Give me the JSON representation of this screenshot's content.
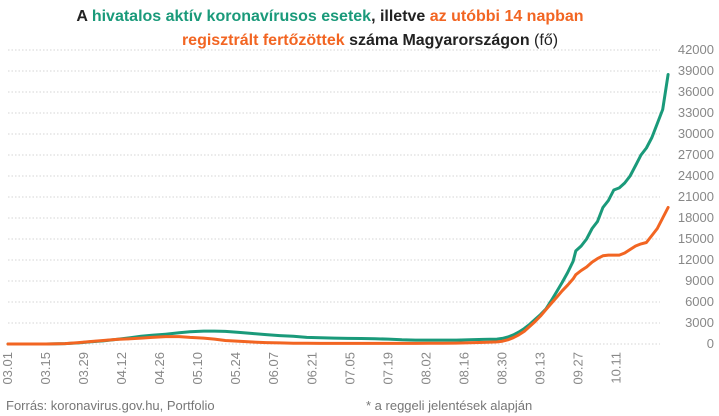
{
  "chart_data": {
    "type": "line",
    "title_line1": [
      {
        "text": "A ",
        "color": "#222222",
        "weight": "bold"
      },
      {
        "text": "hivatalos aktív koronavírusos esetek",
        "color": "#1a9a7a",
        "weight": "bold"
      },
      {
        "text": ", illetve ",
        "color": "#222222",
        "weight": "bold"
      },
      {
        "text": "az utóbbi 14 napban",
        "color": "#f26522",
        "weight": "bold"
      }
    ],
    "title_line2": [
      {
        "text": "regisztrált fertőzöttek",
        "color": "#f26522",
        "weight": "bold"
      },
      {
        "text": " száma Magyarországon ",
        "color": "#222222",
        "weight": "bold"
      },
      {
        "text": "(fő)",
        "color": "#222222",
        "weight": "normal"
      }
    ],
    "x_tick_labels": [
      "03.01",
      "03.15",
      "03.29",
      "04.12",
      "04.26",
      "05.10",
      "05.24",
      "06.07",
      "06.21",
      "07.05",
      "07.19",
      "08.02",
      "08.16",
      "08.30",
      "09.13",
      "09.27",
      "10.11"
    ],
    "y_ticks": [
      0,
      3000,
      6000,
      9000,
      12000,
      15000,
      18000,
      21000,
      24000,
      27000,
      30000,
      33000,
      36000,
      39000,
      42000
    ],
    "ylim": [
      0,
      42000
    ],
    "x_day_range": [
      0,
      240
    ],
    "grid": true,
    "series": [
      {
        "color": "#1a9a7a",
        "points": [
          [
            0,
            0
          ],
          [
            14,
            0
          ],
          [
            21,
            50
          ],
          [
            26,
            150
          ],
          [
            30,
            300
          ],
          [
            35,
            450
          ],
          [
            40,
            650
          ],
          [
            45,
            900
          ],
          [
            49,
            1100
          ],
          [
            53,
            1250
          ],
          [
            58,
            1400
          ],
          [
            63,
            1600
          ],
          [
            67,
            1750
          ],
          [
            72,
            1850
          ],
          [
            76,
            1850
          ],
          [
            80,
            1800
          ],
          [
            85,
            1650
          ],
          [
            90,
            1500
          ],
          [
            95,
            1350
          ],
          [
            100,
            1200
          ],
          [
            105,
            1100
          ],
          [
            110,
            950
          ],
          [
            115,
            900
          ],
          [
            120,
            850
          ],
          [
            125,
            800
          ],
          [
            130,
            780
          ],
          [
            135,
            750
          ],
          [
            140,
            700
          ],
          [
            145,
            600
          ],
          [
            150,
            550
          ],
          [
            155,
            550
          ],
          [
            160,
            550
          ],
          [
            165,
            550
          ],
          [
            170,
            600
          ],
          [
            175,
            650
          ],
          [
            180,
            700
          ],
          [
            182,
            800
          ],
          [
            184,
            1000
          ],
          [
            186,
            1300
          ],
          [
            188,
            1700
          ],
          [
            190,
            2200
          ],
          [
            192,
            2800
          ],
          [
            194,
            3500
          ],
          [
            196,
            4200
          ],
          [
            198,
            5000
          ],
          [
            200,
            6200
          ],
          [
            202,
            7500
          ],
          [
            204,
            8800
          ],
          [
            206,
            10200
          ],
          [
            208,
            11800
          ],
          [
            209,
            13300
          ],
          [
            211,
            14000
          ],
          [
            213,
            15000
          ],
          [
            215,
            16500
          ],
          [
            217,
            17500
          ],
          [
            219,
            19500
          ],
          [
            221,
            20500
          ],
          [
            223,
            22000
          ],
          [
            225,
            22300
          ],
          [
            227,
            23000
          ],
          [
            229,
            24000
          ],
          [
            231,
            25500
          ],
          [
            233,
            27000
          ],
          [
            235,
            28000
          ],
          [
            237,
            29500
          ],
          [
            239,
            31500
          ],
          [
            241,
            33500
          ],
          [
            242,
            36000
          ],
          [
            243,
            38500
          ]
        ]
      },
      {
        "color": "#f26522",
        "points": [
          [
            0,
            0
          ],
          [
            14,
            0
          ],
          [
            21,
            60
          ],
          [
            26,
            200
          ],
          [
            30,
            350
          ],
          [
            35,
            500
          ],
          [
            40,
            650
          ],
          [
            45,
            750
          ],
          [
            49,
            850
          ],
          [
            53,
            950
          ],
          [
            58,
            1050
          ],
          [
            63,
            1050
          ],
          [
            67,
            950
          ],
          [
            72,
            850
          ],
          [
            76,
            700
          ],
          [
            80,
            500
          ],
          [
            85,
            380
          ],
          [
            90,
            280
          ],
          [
            95,
            200
          ],
          [
            100,
            150
          ],
          [
            105,
            120
          ],
          [
            110,
            100
          ],
          [
            115,
            80
          ],
          [
            120,
            80
          ],
          [
            125,
            80
          ],
          [
            130,
            80
          ],
          [
            135,
            80
          ],
          [
            140,
            80
          ],
          [
            145,
            80
          ],
          [
            150,
            90
          ],
          [
            155,
            100
          ],
          [
            160,
            110
          ],
          [
            165,
            130
          ],
          [
            170,
            170
          ],
          [
            175,
            230
          ],
          [
            180,
            300
          ],
          [
            182,
            400
          ],
          [
            184,
            600
          ],
          [
            186,
            900
          ],
          [
            188,
            1300
          ],
          [
            190,
            1800
          ],
          [
            192,
            2500
          ],
          [
            194,
            3200
          ],
          [
            196,
            4000
          ],
          [
            198,
            4900
          ],
          [
            200,
            5800
          ],
          [
            202,
            6700
          ],
          [
            204,
            7600
          ],
          [
            206,
            8400
          ],
          [
            208,
            9300
          ],
          [
            209,
            9900
          ],
          [
            211,
            10500
          ],
          [
            213,
            11000
          ],
          [
            215,
            11700
          ],
          [
            217,
            12200
          ],
          [
            219,
            12600
          ],
          [
            221,
            12700
          ],
          [
            223,
            12700
          ],
          [
            225,
            12700
          ],
          [
            227,
            13000
          ],
          [
            229,
            13500
          ],
          [
            231,
            14000
          ],
          [
            233,
            14300
          ],
          [
            235,
            14500
          ],
          [
            237,
            15500
          ],
          [
            239,
            16500
          ],
          [
            241,
            18000
          ],
          [
            243,
            19500
          ]
        ]
      }
    ]
  },
  "footer": {
    "source": "Forrás: koronavirus.gov.hu, Portfolio",
    "note": "* a reggeli jelentések alapján"
  }
}
